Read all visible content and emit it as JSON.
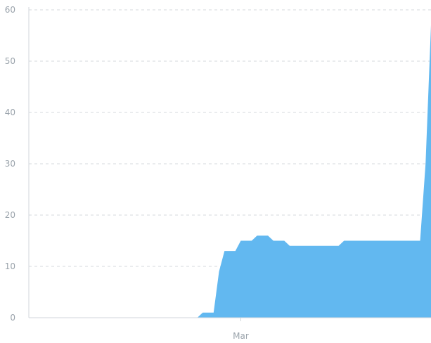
{
  "chart_data": {
    "type": "area",
    "title": "",
    "xlabel": "",
    "ylabel": "",
    "grid": true,
    "legend": "none",
    "ylim": [
      0,
      60
    ],
    "yticks": [
      0,
      10,
      20,
      30,
      40,
      50,
      60
    ],
    "xtick_labels": [
      {
        "label": "Mar",
        "x": "2020-03-01"
      }
    ],
    "xlim": [
      "2020-01-22",
      "2020-04-05"
    ],
    "series": [
      {
        "color": "#62b8f0",
        "x": [
          "2020-01-22",
          "2020-01-23",
          "2020-01-24",
          "2020-01-25",
          "2020-01-26",
          "2020-01-27",
          "2020-01-28",
          "2020-01-29",
          "2020-01-30",
          "2020-01-31",
          "2020-02-01",
          "2020-02-02",
          "2020-02-03",
          "2020-02-04",
          "2020-02-05",
          "2020-02-06",
          "2020-02-07",
          "2020-02-08",
          "2020-02-09",
          "2020-02-10",
          "2020-02-11",
          "2020-02-12",
          "2020-02-13",
          "2020-02-14",
          "2020-02-15",
          "2020-02-16",
          "2020-02-17",
          "2020-02-18",
          "2020-02-19",
          "2020-02-20",
          "2020-02-21",
          "2020-02-22",
          "2020-02-23",
          "2020-02-24",
          "2020-02-25",
          "2020-02-26",
          "2020-02-27",
          "2020-02-28",
          "2020-02-29",
          "2020-03-01",
          "2020-03-02",
          "2020-03-03",
          "2020-03-04",
          "2020-03-05",
          "2020-03-06",
          "2020-03-07",
          "2020-03-08",
          "2020-03-09",
          "2020-03-10",
          "2020-03-11",
          "2020-03-12",
          "2020-03-13",
          "2020-03-14",
          "2020-03-15",
          "2020-03-16",
          "2020-03-17",
          "2020-03-18",
          "2020-03-19",
          "2020-03-20",
          "2020-03-21",
          "2020-03-22",
          "2020-03-23",
          "2020-03-24",
          "2020-03-25",
          "2020-03-26",
          "2020-03-27",
          "2020-03-28",
          "2020-03-29",
          "2020-03-30",
          "2020-03-31",
          "2020-04-01",
          "2020-04-02",
          "2020-04-03",
          "2020-04-04",
          "2020-04-05"
        ],
        "values": [
          0,
          0,
          0,
          0,
          0,
          0,
          0,
          0,
          0,
          0,
          0,
          0,
          0,
          0,
          0,
          0,
          0,
          0,
          0,
          0,
          0,
          0,
          0,
          0,
          0,
          0,
          0,
          0,
          0,
          0,
          0,
          0,
          1,
          1,
          1,
          9,
          13,
          13,
          13,
          15,
          15,
          15,
          16,
          16,
          16,
          15,
          15,
          15,
          14,
          14,
          14,
          14,
          14,
          14,
          14,
          14,
          14,
          14,
          15,
          15,
          15,
          15,
          15,
          15,
          15,
          15,
          15,
          15,
          15,
          15,
          15,
          15,
          15,
          30,
          57
        ]
      }
    ]
  }
}
